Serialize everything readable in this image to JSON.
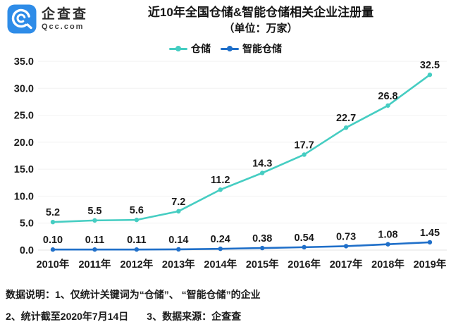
{
  "header": {
    "brand": {
      "name": "企查查",
      "domain": "Qcc.com"
    },
    "title": "近10年全国仓储&智能仓储相关企业注册量",
    "subtitle": "（单位：万家）"
  },
  "colors": {
    "warehouse": "#45cdc2",
    "smart": "#1f6fc9",
    "logo_blue": "#2e8ce8",
    "grid": "#f2f2f2",
    "baseline": "#e3e3e3",
    "text": "#1a1a1a"
  },
  "legend": {
    "items": [
      {
        "label": "仓储"
      },
      {
        "label": "智能仓储"
      }
    ]
  },
  "chart_data": {
    "type": "line",
    "title": "近10年全国仓储&智能仓储相关企业注册量",
    "unit_label": "（单位：万家）",
    "categories": [
      "2010年",
      "2011年",
      "2012年",
      "2013年",
      "2014年",
      "2015年",
      "2016年",
      "2017年",
      "2018年",
      "2019年"
    ],
    "series": [
      {
        "name": "仓储",
        "color": "#45cdc2",
        "values": [
          5.2,
          5.5,
          5.6,
          7.2,
          11.2,
          14.3,
          17.7,
          22.7,
          26.8,
          32.5
        ],
        "labels": [
          "5.2",
          "5.5",
          "5.6",
          "7.2",
          "11.2",
          "14.3",
          "17.7",
          "22.7",
          "26.8",
          "32.5"
        ]
      },
      {
        "name": "智能仓储",
        "color": "#1f6fc9",
        "values": [
          0.1,
          0.11,
          0.11,
          0.14,
          0.24,
          0.38,
          0.54,
          0.73,
          1.08,
          1.45
        ],
        "labels": [
          "0.10",
          "0.11",
          "0.11",
          "0.14",
          "0.24",
          "0.38",
          "0.54",
          "0.73",
          "1.08",
          "1.45"
        ]
      }
    ],
    "ylim": [
      0,
      35
    ],
    "ytick_labels": [
      "0.0",
      "5.0",
      "10.0",
      "15.0",
      "20.0",
      "25.0",
      "30.0",
      "35.0"
    ],
    "grid": true,
    "legend_position": "top"
  },
  "footer": {
    "line1": "数据说明：1、仅统计关键词为“仓储”、 “智能仓储”的企业",
    "line2a": "2、统计截至2020年7月14日",
    "line2b": "3、数据来源：企查查"
  }
}
